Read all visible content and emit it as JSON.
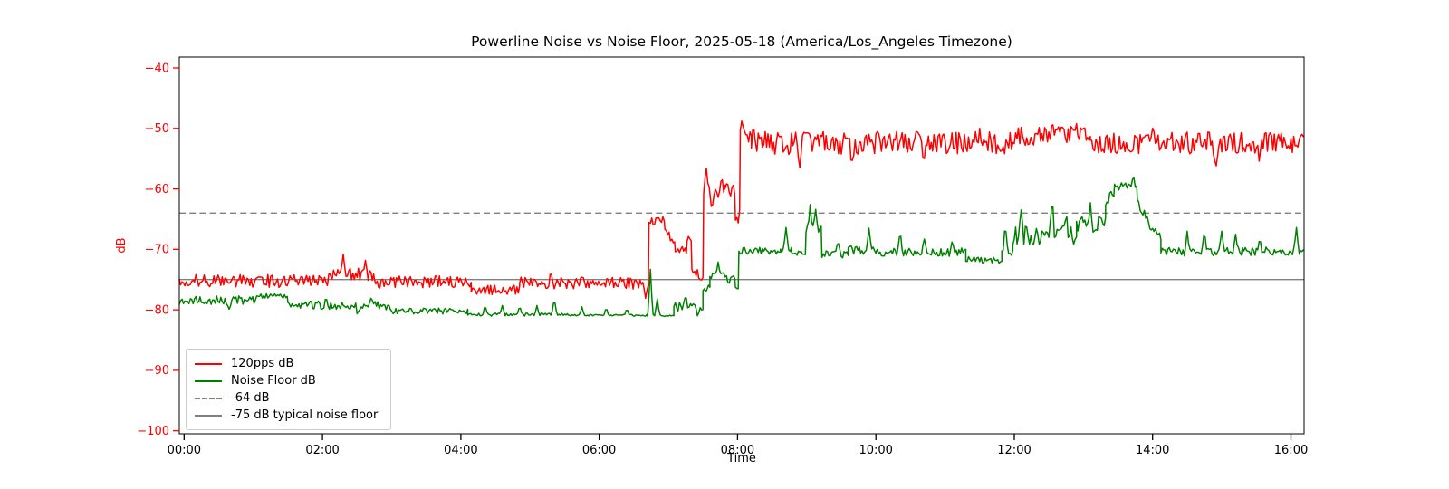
{
  "figure": {
    "title": "Powerline Noise vs Noise Floor, 2025-05-18 (America/Los_Angeles Timezone)"
  },
  "chart_data": {
    "type": "line",
    "title": "Powerline Noise vs Noise Floor, 2025-05-18 (America/Los_Angeles Timezone)",
    "xlabel": "Time",
    "ylabel": "dB",
    "x_unit": "hours_since_midnight",
    "xlim": [
      -0.07,
      16.19
    ],
    "ylim": [
      -100.5,
      -38.2
    ],
    "grid": false,
    "legend_position": "lower left",
    "styles": {
      "ytick_color": "#ff0000",
      "xtick_color": "#000000",
      "ylabel_color": "#ff0000",
      "xlabel_color": "#000000",
      "title_color": "#000000",
      "spine_color": "#000000",
      "background": "#ffffff"
    },
    "xticks": [
      {
        "value": 0,
        "label": "00:00"
      },
      {
        "value": 2,
        "label": "02:00"
      },
      {
        "value": 4,
        "label": "04:00"
      },
      {
        "value": 6,
        "label": "06:00"
      },
      {
        "value": 8,
        "label": "08:00"
      },
      {
        "value": 10,
        "label": "10:00"
      },
      {
        "value": 12,
        "label": "12:00"
      },
      {
        "value": 14,
        "label": "14:00"
      },
      {
        "value": 16,
        "label": "16:00"
      }
    ],
    "yticks": [
      {
        "value": -40,
        "label": "−40"
      },
      {
        "value": -50,
        "label": "−50"
      },
      {
        "value": -60,
        "label": "−60"
      },
      {
        "value": -70,
        "label": "−70"
      },
      {
        "value": -80,
        "label": "−80"
      },
      {
        "value": -90,
        "label": "−90"
      },
      {
        "value": -100,
        "label": "−100"
      }
    ],
    "hlines": [
      {
        "value": -64,
        "style": "dashed",
        "color": "#808080",
        "label": "-64 dB"
      },
      {
        "value": -75,
        "style": "solid",
        "color": "#808080",
        "label": "-75 dB typical noise floor"
      }
    ],
    "legend": [
      {
        "label": "120pps dB",
        "color": "#ff0000",
        "dash": "solid"
      },
      {
        "label": "Noise Floor dB",
        "color": "#008000",
        "dash": "solid"
      },
      {
        "label": "-64 dB",
        "color": "#808080",
        "dash": "dashed"
      },
      {
        "label": "-75 dB typical noise floor",
        "color": "#808080",
        "dash": "solid"
      }
    ],
    "series": [
      {
        "name": "120pps dB",
        "color": "#ff0000",
        "description": "Noisy minute-scale trace; envelope encoded as segments [t0,t1,v0,v1,noise_amp] in hours/dB plus spike events [t,peak_dB]",
        "segments": [
          [
            -0.07,
            2.1,
            -75.2,
            -75.2,
            1.1
          ],
          [
            2.1,
            2.75,
            -74.2,
            -74.2,
            1.3
          ],
          [
            2.75,
            4.15,
            -75.4,
            -75.4,
            1.0
          ],
          [
            4.15,
            4.85,
            -76.7,
            -76.7,
            0.8
          ],
          [
            4.85,
            6.72,
            -75.6,
            -75.6,
            1.0
          ],
          [
            6.72,
            6.95,
            -65.3,
            -65.3,
            0.7
          ],
          [
            6.95,
            7.1,
            -66.5,
            -69.5,
            0.6
          ],
          [
            7.1,
            7.27,
            -69.9,
            -69.9,
            0.8
          ],
          [
            7.27,
            7.34,
            -68.2,
            -68.2,
            0.6
          ],
          [
            7.34,
            7.51,
            -73.9,
            -74.6,
            0.9
          ],
          [
            7.51,
            7.6,
            -60.5,
            -60.5,
            1.3
          ],
          [
            7.6,
            7.82,
            -61.5,
            -59.5,
            1.3
          ],
          [
            7.82,
            7.97,
            -59.6,
            -60.6,
            1.1
          ],
          [
            7.97,
            8.04,
            -64.5,
            -66.3,
            0.7
          ],
          [
            8.04,
            8.2,
            -50.4,
            -51.6,
            1.0
          ],
          [
            8.2,
            12.0,
            -52.4,
            -52.4,
            1.9
          ],
          [
            12.0,
            13.1,
            -51.3,
            -51.3,
            1.6
          ],
          [
            13.1,
            16.19,
            -52.4,
            -52.4,
            1.8
          ]
        ],
        "spikes": [
          [
            2.3,
            -70.8
          ],
          [
            2.62,
            -71.8
          ],
          [
            5.3,
            -73.6
          ],
          [
            6.67,
            -78.1
          ],
          [
            6.85,
            -64.7
          ],
          [
            7.55,
            -56.6
          ],
          [
            7.63,
            -63.6
          ],
          [
            7.77,
            -58.3
          ],
          [
            8.06,
            -48.8
          ],
          [
            8.23,
            -49.4
          ],
          [
            8.9,
            -56.5
          ],
          [
            9.65,
            -56.2
          ],
          [
            10.69,
            -56.6
          ],
          [
            11.5,
            -50.0
          ],
          [
            12.55,
            -48.7
          ],
          [
            12.9,
            -49.2
          ],
          [
            14.0,
            -50.0
          ],
          [
            14.91,
            -57.0
          ],
          [
            15.54,
            -55.4
          ],
          [
            16.15,
            -50.4
          ]
        ]
      },
      {
        "name": "Noise Floor dB",
        "color": "#008000",
        "description": "Noisy minute-scale trace; envelope encoded as segments [t0,t1,v0,v1,noise_amp] in hours/dB plus spike events [t,peak_dB]",
        "segments": [
          [
            -0.07,
            1.05,
            -78.4,
            -78.4,
            0.7
          ],
          [
            1.05,
            1.5,
            -77.7,
            -77.7,
            0.4
          ],
          [
            1.5,
            1.8,
            -79.0,
            -79.3,
            0.6
          ],
          [
            1.8,
            3.0,
            -79.3,
            -79.3,
            0.8
          ],
          [
            3.0,
            4.1,
            -80.2,
            -80.2,
            0.5
          ],
          [
            4.1,
            5.55,
            -80.8,
            -80.8,
            0.25
          ],
          [
            5.55,
            6.7,
            -80.9,
            -80.9,
            0.15
          ],
          [
            6.7,
            7.08,
            -80.9,
            -80.9,
            0.2
          ],
          [
            7.08,
            7.5,
            -79.4,
            -79.4,
            0.8
          ],
          [
            7.5,
            7.6,
            -77.3,
            -76.2,
            0.6
          ],
          [
            7.6,
            7.97,
            -74.4,
            -74.3,
            0.5
          ],
          [
            7.97,
            8.02,
            -76.4,
            -76.4,
            0.3
          ],
          [
            8.02,
            8.62,
            -70.2,
            -70.4,
            0.6
          ],
          [
            8.62,
            8.78,
            -70.0,
            -70.0,
            0.5
          ],
          [
            8.78,
            8.99,
            -70.7,
            -70.7,
            0.5
          ],
          [
            8.99,
            9.22,
            -67.0,
            -67.0,
            1.2
          ],
          [
            9.22,
            9.6,
            -70.8,
            -70.8,
            0.6
          ],
          [
            9.6,
            10.0,
            -70.0,
            -70.0,
            0.8
          ],
          [
            10.0,
            11.3,
            -70.5,
            -70.5,
            0.7
          ],
          [
            11.3,
            11.82,
            -71.6,
            -71.9,
            0.5
          ],
          [
            11.82,
            11.98,
            -70.6,
            -70.6,
            0.6
          ],
          [
            11.98,
            12.9,
            -67.8,
            -67.8,
            1.7
          ],
          [
            12.9,
            13.32,
            -65.8,
            -65.8,
            1.4
          ],
          [
            13.32,
            13.45,
            -62.5,
            -60.2,
            0.9
          ],
          [
            13.45,
            13.78,
            -59.7,
            -59.7,
            0.7
          ],
          [
            13.78,
            14.12,
            -62.5,
            -68.5,
            0.9
          ],
          [
            14.12,
            16.19,
            -70.4,
            -70.3,
            0.7
          ]
        ],
        "spikes": [
          [
            0.65,
            -79.9
          ],
          [
            2.05,
            -78.0
          ],
          [
            2.51,
            -80.9
          ],
          [
            2.7,
            -78.1
          ],
          [
            4.35,
            -79.2
          ],
          [
            4.6,
            -79.3
          ],
          [
            4.85,
            -79.4
          ],
          [
            5.1,
            -79.3
          ],
          [
            5.35,
            -78.1
          ],
          [
            5.75,
            -79.5
          ],
          [
            6.1,
            -79.6
          ],
          [
            6.4,
            -79.8
          ],
          [
            6.74,
            -73.3
          ],
          [
            6.84,
            -78.2
          ],
          [
            7.25,
            -77.6
          ],
          [
            7.42,
            -81.0
          ],
          [
            7.72,
            -72.1
          ],
          [
            7.87,
            -76.1
          ],
          [
            8.7,
            -66.4
          ],
          [
            9.05,
            -62.6
          ],
          [
            9.13,
            -63.4
          ],
          [
            9.45,
            -68.4
          ],
          [
            9.9,
            -66.5
          ],
          [
            10.35,
            -66.7
          ],
          [
            10.7,
            -68.3
          ],
          [
            11.1,
            -68.8
          ],
          [
            11.87,
            -65.6
          ],
          [
            12.1,
            -63.5
          ],
          [
            12.55,
            -60.8
          ],
          [
            12.75,
            -63.8
          ],
          [
            13.1,
            -62.3
          ],
          [
            13.72,
            -57.8
          ],
          [
            14.5,
            -67.0
          ],
          [
            14.75,
            -66.8
          ],
          [
            15.0,
            -67.0
          ],
          [
            15.2,
            -67.5
          ],
          [
            15.55,
            -68.0
          ],
          [
            16.08,
            -66.4
          ]
        ]
      }
    ]
  }
}
